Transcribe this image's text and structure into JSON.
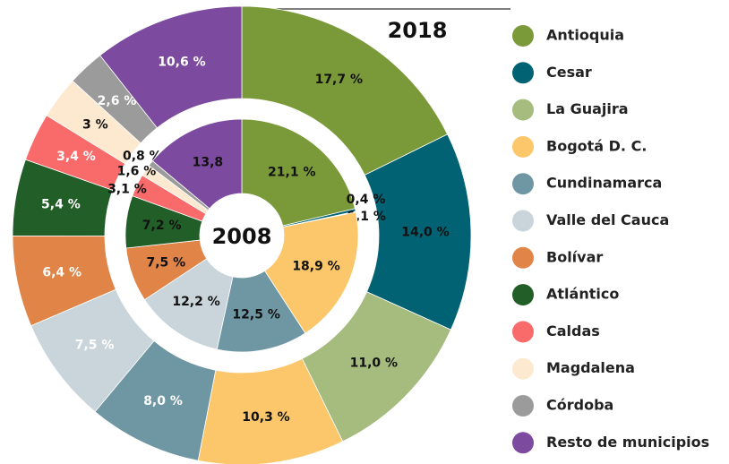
{
  "chart_data": {
    "type": "donut",
    "categories": [
      "Antioquia",
      "Cesar",
      "La Guajira",
      "Bogotá D. C.",
      "Cundinamarca",
      "Valle del Cauca",
      "Bolívar",
      "Atlántico",
      "Caldas",
      "Magdalena",
      "Córdoba",
      "Resto de municipios"
    ],
    "colors": [
      "#7a9a3a",
      "#006272",
      "#a6bb7e",
      "#fcc76a",
      "#6f97a3",
      "#c9d5db",
      "#e08447",
      "#225e27",
      "#f96b6b",
      "#fde9cf",
      "#9b9b9b",
      "#7c4a9e"
    ],
    "series": [
      {
        "name": "2018",
        "values": [
          17.7,
          14.0,
          11.0,
          10.3,
          8.0,
          7.5,
          6.4,
          5.4,
          3.4,
          3,
          2.6,
          10.6
        ],
        "value_labels": [
          "17,7 %",
          "14,0 %",
          "11,0 %",
          "10,3 %",
          "8,0 %",
          "7,5 %",
          "6,4 %",
          "5,4 %",
          "3,4 %",
          "3 %",
          "2,6 %",
          "10,6 %"
        ],
        "label_colors": [
          "#111",
          "#111",
          "#111",
          "#111",
          "#fff",
          "#fff",
          "#fff",
          "#fff",
          "#fff",
          "#111",
          "#fff",
          "#fff"
        ]
      },
      {
        "name": "2008",
        "values": [
          21.1,
          0.4,
          0.1,
          18.9,
          12.5,
          12.2,
          7.5,
          7.2,
          3.1,
          1.6,
          0.8,
          13.8
        ],
        "value_labels": [
          "21,1 %",
          "0,4 %",
          "0,1 %",
          "18,9 %",
          "12,5 %",
          "12,2 %",
          "7,5 %",
          "7,2 %",
          "3,1 %",
          "1,6 %",
          "0,8 %",
          "13,8"
        ],
        "label_colors": [
          "#111",
          "#111",
          "#111",
          "#111",
          "#111",
          "#111",
          "#111",
          "#111",
          "#111",
          "#111",
          "#111",
          "#111"
        ]
      }
    ]
  }
}
